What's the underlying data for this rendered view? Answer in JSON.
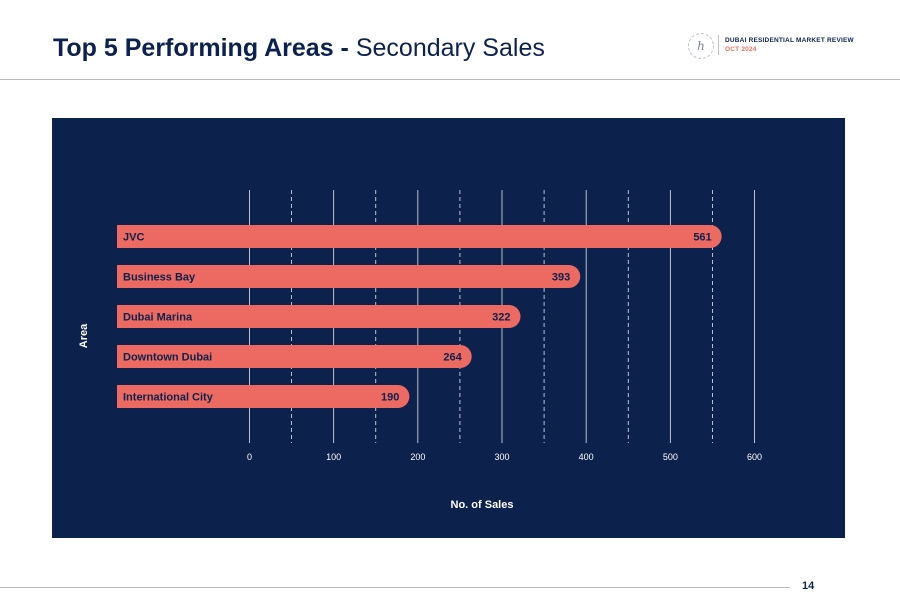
{
  "header": {
    "title_bold": "Top 5 Performing Areas -",
    "title_light": "Secondary Sales",
    "brand_line1": "DUBAI RESIDENTIAL MARKET REVIEW",
    "brand_line2": "OCT 2024",
    "logo_glyph": "h"
  },
  "footer": {
    "page_number": "14"
  },
  "colors": {
    "panel_bg": "#0c214b",
    "bar": "#ed6a63",
    "bar_text": "#0c214b",
    "grid": "#ffffff",
    "axis_text": "#ffffff",
    "title": "#0d2150",
    "accent": "#ec6b5e"
  },
  "chart_data": {
    "type": "bar",
    "orientation": "horizontal",
    "categories": [
      "JVC",
      "Business Bay",
      "Dubai Marina",
      "Downtown Dubai",
      "International City"
    ],
    "values": [
      561,
      393,
      322,
      264,
      190
    ],
    "xlabel": "No. of Sales",
    "ylabel": "Area",
    "xlim": [
      0,
      600
    ],
    "xticks": [
      0,
      100,
      200,
      300,
      400,
      500,
      600
    ],
    "grid": "vertical solid at major ticks, dashed at midpoints",
    "data_labels": true,
    "legend": "none"
  }
}
